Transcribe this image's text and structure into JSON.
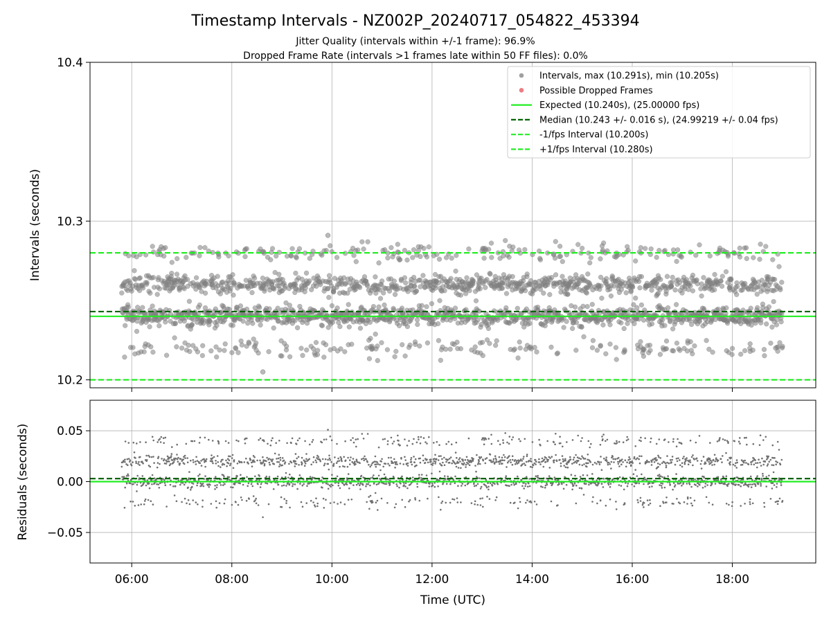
{
  "chart_data": {
    "type": "scatter",
    "title": "Timestamp Intervals - NZ002P_20240717_054822_453394",
    "subtitle_lines": [
      "Jitter Quality (intervals within +/-1 frame): 96.9%",
      "Dropped Frame Rate (intervals >1 frames late within 50 FF files): 0.0%"
    ],
    "xlabel": "Time (UTC)",
    "x_time_range": [
      "05:10",
      "19:40"
    ],
    "x_ticks": [
      "06:00",
      "08:00",
      "10:00",
      "12:00",
      "14:00",
      "16:00",
      "18:00"
    ],
    "grid": true,
    "legend_position": "upper-right",
    "data_time_range": [
      "05:48",
      "19:00"
    ],
    "top_panel": {
      "ylabel": "Intervals (seconds)",
      "ylim": [
        10.195,
        10.4
      ],
      "y_ticks": [
        "10.2",
        "10.3",
        "10.4"
      ],
      "series": [
        {
          "name": "Intervals, max (10.291s), min (10.205s)",
          "kind": "scatter",
          "color": "#808080",
          "max": 10.291,
          "min": 10.205,
          "clusters": [
            {
              "center": 10.24,
              "spread": 0.003,
              "weight": 0.46
            },
            {
              "center": 10.26,
              "spread": 0.003,
              "weight": 0.36
            },
            {
              "center": 10.22,
              "spread": 0.003,
              "weight": 0.09
            },
            {
              "center": 10.28,
              "spread": 0.003,
              "weight": 0.09
            }
          ],
          "points_approx": 2400
        },
        {
          "name": "Possible Dropped Frames",
          "kind": "scatter",
          "color": "#e8505b",
          "points": []
        },
        {
          "name": "Expected (10.240s), (25.00000 fps)",
          "kind": "hline",
          "y": 10.24,
          "color": "#22ee22",
          "style": "solid"
        },
        {
          "name": "Median (10.243 +/- 0.016 s), (24.99219 +/- 0.04 fps)",
          "kind": "hline",
          "y": 10.243,
          "color": "#006400",
          "style": "dashed"
        },
        {
          "name": "-1/fps Interval (10.200s)",
          "kind": "hline",
          "y": 10.2,
          "color": "#22ee22",
          "style": "dashed"
        },
        {
          "name": "+1/fps Interval (10.280s)",
          "kind": "hline",
          "y": 10.28,
          "color": "#22ee22",
          "style": "dashed"
        }
      ]
    },
    "bottom_panel": {
      "ylabel": "Residuals (seconds)",
      "ylim": [
        -0.08,
        0.08
      ],
      "y_ticks": [
        "0.05",
        "0.00",
        "−0.05"
      ],
      "y_tick_values": [
        0.05,
        0.0,
        -0.05
      ],
      "series": [
        {
          "kind": "scatter",
          "color": "#707070",
          "note": "residual = interval - 10.240"
        },
        {
          "kind": "hline",
          "y": 0.0,
          "color": "#22ee22",
          "style": "solid"
        },
        {
          "kind": "hline",
          "y": 0.003,
          "color": "#006400",
          "style": "dashed"
        }
      ]
    }
  }
}
